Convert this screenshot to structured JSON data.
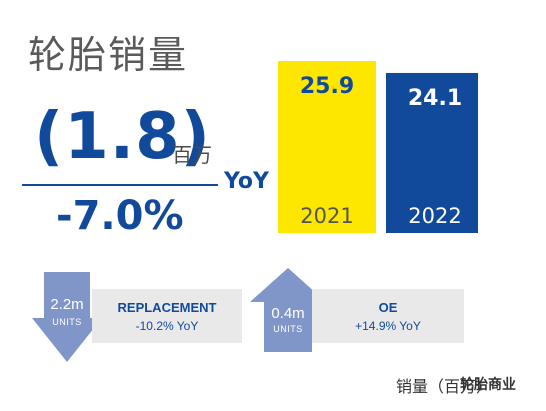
{
  "title": "轮胎销量",
  "headline": {
    "change_value": "(1.8)",
    "unit": "百万",
    "yoy_label": "YoY",
    "change_pct": "-7.0%"
  },
  "chart_data": {
    "type": "bar",
    "categories": [
      "2021",
      "2022"
    ],
    "values": [
      25.9,
      24.1
    ],
    "value_labels": [
      "25.9",
      "24.1"
    ],
    "colors": [
      "#fde600",
      "#124a9b"
    ],
    "value_label_colors": [
      "#124a9b",
      "#ffffff"
    ],
    "category_label_colors": [
      "#555555",
      "#ffffff"
    ],
    "title": "",
    "xlabel": "",
    "ylabel": "",
    "ylim": [
      0,
      25.9
    ],
    "grid": false,
    "legend": "none"
  },
  "segments": [
    {
      "arrow": "down-arrow",
      "arrow_color": "#8095c8",
      "value": "2.2m",
      "unit": "UNITS",
      "label": "REPLACEMENT",
      "yoy": "-10.2% YoY"
    },
    {
      "arrow": "up-arrow",
      "arrow_color": "#8095c8",
      "value": "0.4m",
      "unit": "UNITS",
      "label": "OE",
      "yoy": "+14.9% YoY"
    }
  ],
  "footnote": "销量（百万）",
  "watermark": "轮胎商业"
}
